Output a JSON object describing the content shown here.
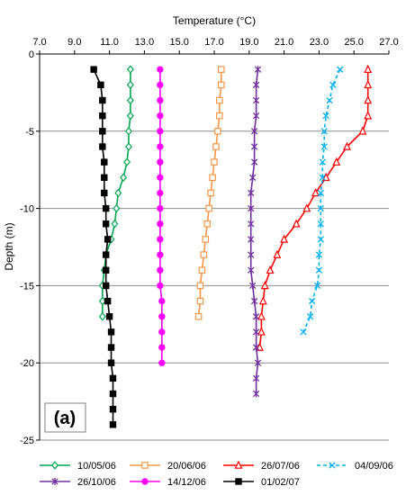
{
  "chart_data": {
    "type": "line",
    "panel_label": "(a)",
    "xlabel": "Temperature (°C)",
    "ylabel": "Depth (m)",
    "xlim": [
      7.0,
      27.0
    ],
    "ylim": [
      -25,
      0
    ],
    "x_ticks": [
      7.0,
      9.0,
      11.0,
      13.0,
      15.0,
      17.0,
      19.0,
      21.0,
      23.0,
      25.0,
      27.0
    ],
    "x_tick_labels": [
      "7.0",
      "9.0",
      "11.0",
      "13.0",
      "15.0",
      "17.0",
      "19.0",
      "21.0",
      "23.0",
      "25.0",
      "27.0"
    ],
    "y_ticks": [
      0,
      -5,
      -10,
      -15,
      -20,
      -25
    ],
    "y_tick_labels": [
      "0",
      "-5",
      "-10",
      "-15",
      "-20",
      "-25"
    ],
    "grid": "horizontal",
    "x_axis_position": "top",
    "legend_position": "bottom",
    "series": [
      {
        "name": "10/05/06",
        "color": "#00a651",
        "marker": "diamond",
        "dashed": false,
        "points": [
          [
            12.2,
            -1
          ],
          [
            12.2,
            -2
          ],
          [
            12.2,
            -3
          ],
          [
            12.2,
            -4
          ],
          [
            12.1,
            -5
          ],
          [
            12.1,
            -6
          ],
          [
            12.0,
            -7
          ],
          [
            11.8,
            -8
          ],
          [
            11.5,
            -9
          ],
          [
            11.4,
            -10
          ],
          [
            11.3,
            -11
          ],
          [
            11.1,
            -12
          ],
          [
            10.8,
            -13
          ],
          [
            10.7,
            -14
          ],
          [
            10.6,
            -15
          ],
          [
            10.6,
            -16
          ],
          [
            10.6,
            -17
          ]
        ]
      },
      {
        "name": "20/06/06",
        "color": "#f79646",
        "marker": "square",
        "dashed": false,
        "points": [
          [
            17.4,
            -1
          ],
          [
            17.4,
            -2
          ],
          [
            17.3,
            -3
          ],
          [
            17.3,
            -4
          ],
          [
            17.2,
            -5
          ],
          [
            17.1,
            -6
          ],
          [
            17.0,
            -7
          ],
          [
            16.9,
            -8
          ],
          [
            16.8,
            -9
          ],
          [
            16.7,
            -10
          ],
          [
            16.6,
            -11
          ],
          [
            16.5,
            -12
          ],
          [
            16.4,
            -13
          ],
          [
            16.3,
            -14
          ],
          [
            16.2,
            -15
          ],
          [
            16.2,
            -16
          ],
          [
            16.1,
            -17
          ]
        ]
      },
      {
        "name": "26/07/06",
        "color": "#ff0000",
        "marker": "triangle",
        "dashed": false,
        "points": [
          [
            25.8,
            -1
          ],
          [
            25.8,
            -2
          ],
          [
            25.8,
            -3
          ],
          [
            25.8,
            -4
          ],
          [
            25.5,
            -5
          ],
          [
            24.6,
            -6
          ],
          [
            24.0,
            -7
          ],
          [
            23.4,
            -8
          ],
          [
            22.8,
            -9
          ],
          [
            22.3,
            -10
          ],
          [
            21.7,
            -11
          ],
          [
            21.0,
            -12
          ],
          [
            20.6,
            -13
          ],
          [
            20.2,
            -14
          ],
          [
            19.9,
            -15
          ],
          [
            19.8,
            -16
          ],
          [
            19.7,
            -17
          ],
          [
            19.7,
            -18
          ],
          [
            19.6,
            -19
          ]
        ]
      },
      {
        "name": "04/09/06",
        "color": "#00b0f0",
        "marker": "x",
        "dashed": true,
        "points": [
          [
            24.2,
            -1
          ],
          [
            23.8,
            -2
          ],
          [
            23.6,
            -3
          ],
          [
            23.4,
            -4
          ],
          [
            23.3,
            -5
          ],
          [
            23.3,
            -6
          ],
          [
            23.2,
            -7
          ],
          [
            23.2,
            -8
          ],
          [
            23.1,
            -9
          ],
          [
            23.1,
            -10
          ],
          [
            23.1,
            -11
          ],
          [
            23.1,
            -12
          ],
          [
            23.0,
            -13
          ],
          [
            23.0,
            -14
          ],
          [
            22.9,
            -15
          ],
          [
            22.6,
            -16
          ],
          [
            22.5,
            -17
          ],
          [
            22.1,
            -18
          ]
        ]
      },
      {
        "name": "26/10/06",
        "color": "#7030a0",
        "marker": "star",
        "dashed": false,
        "points": [
          [
            19.5,
            -1
          ],
          [
            19.4,
            -2
          ],
          [
            19.4,
            -3
          ],
          [
            19.4,
            -4
          ],
          [
            19.3,
            -5
          ],
          [
            19.3,
            -6
          ],
          [
            19.3,
            -7
          ],
          [
            19.2,
            -8
          ],
          [
            19.1,
            -9
          ],
          [
            19.1,
            -10
          ],
          [
            19.1,
            -11
          ],
          [
            19.1,
            -12
          ],
          [
            19.1,
            -13
          ],
          [
            19.1,
            -14
          ],
          [
            19.2,
            -15
          ],
          [
            19.3,
            -16
          ],
          [
            19.4,
            -17
          ],
          [
            19.4,
            -18
          ],
          [
            19.4,
            -19
          ],
          [
            19.5,
            -20
          ],
          [
            19.4,
            -21
          ],
          [
            19.4,
            -22
          ]
        ]
      },
      {
        "name": "14/12/06",
        "color": "#ff00ff",
        "marker": "circle",
        "dashed": false,
        "points": [
          [
            13.9,
            -1
          ],
          [
            13.9,
            -2
          ],
          [
            13.9,
            -3
          ],
          [
            13.9,
            -4
          ],
          [
            13.9,
            -5
          ],
          [
            13.9,
            -6
          ],
          [
            13.9,
            -7
          ],
          [
            13.9,
            -8
          ],
          [
            13.9,
            -9
          ],
          [
            13.9,
            -10
          ],
          [
            13.9,
            -11
          ],
          [
            13.9,
            -12
          ],
          [
            13.9,
            -13
          ],
          [
            13.9,
            -14
          ],
          [
            13.9,
            -15
          ],
          [
            14.0,
            -16
          ],
          [
            14.0,
            -17
          ],
          [
            14.0,
            -18
          ],
          [
            14.0,
            -19
          ],
          [
            14.0,
            -20
          ]
        ]
      },
      {
        "name": "01/02/07",
        "color": "#000000",
        "marker": "square-filled",
        "dashed": false,
        "points": [
          [
            10.1,
            -1
          ],
          [
            10.5,
            -2
          ],
          [
            10.6,
            -3
          ],
          [
            10.6,
            -4
          ],
          [
            10.6,
            -5
          ],
          [
            10.6,
            -6
          ],
          [
            10.7,
            -7
          ],
          [
            10.7,
            -8
          ],
          [
            10.7,
            -9
          ],
          [
            10.8,
            -10
          ],
          [
            10.8,
            -11
          ],
          [
            10.9,
            -12
          ],
          [
            10.8,
            -13
          ],
          [
            10.8,
            -14
          ],
          [
            10.8,
            -15
          ],
          [
            10.9,
            -16
          ],
          [
            11.0,
            -17
          ],
          [
            11.1,
            -18
          ],
          [
            11.1,
            -19
          ],
          [
            11.1,
            -20
          ],
          [
            11.2,
            -21
          ],
          [
            11.2,
            -22
          ],
          [
            11.2,
            -23
          ],
          [
            11.2,
            -24
          ]
        ]
      }
    ]
  }
}
